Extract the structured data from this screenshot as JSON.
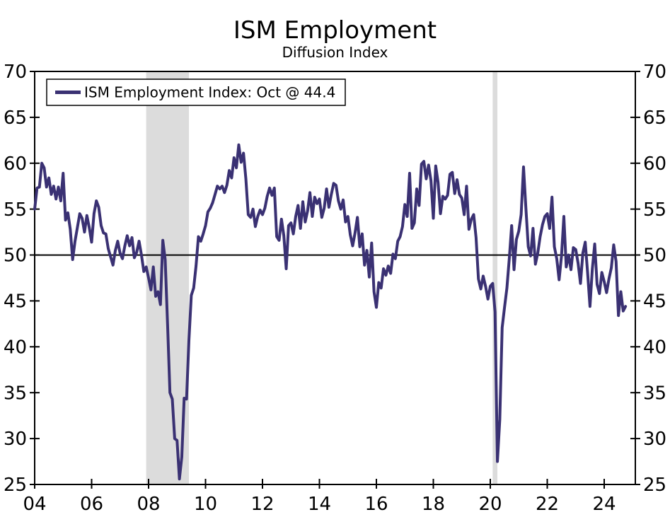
{
  "chart_data": {
    "type": "line",
    "title": "ISM Employment",
    "subtitle": "Diffusion Index",
    "ylim": [
      25,
      70
    ],
    "y_ticks": [
      25,
      30,
      35,
      40,
      45,
      50,
      55,
      60,
      65,
      70
    ],
    "x_tick_years": [
      2004,
      2006,
      2008,
      2010,
      2012,
      2014,
      2016,
      2018,
      2020,
      2022,
      2024
    ],
    "x_tick_labels": [
      "04",
      "06",
      "08",
      "10",
      "12",
      "14",
      "16",
      "18",
      "20",
      "22",
      "24"
    ],
    "reference_line_value": 50,
    "grid": false,
    "legend_position": "top-left",
    "band_color": "#dcdcdc",
    "axis_color": "#000000",
    "background_color": "#ffffff",
    "recession_bands": [
      {
        "start": "2007-12",
        "end": "2009-06"
      },
      {
        "start": "2020-02",
        "end": "2020-04"
      }
    ],
    "series": [
      {
        "name": "ISM Employment Index",
        "legend_label": "ISM Employment Index: Oct @ 44.4",
        "latest_point": {
          "month": "Oct",
          "value": 44.4
        },
        "color": "#3a3173",
        "start_month": "2004-01",
        "end_month": "2024-10",
        "values": [
          55.0,
          57.3,
          57.4,
          60.0,
          59.5,
          57.4,
          58.4,
          56.6,
          57.5,
          56.1,
          57.4,
          55.9,
          58.9,
          53.8,
          54.6,
          52.8,
          49.5,
          51.5,
          53.0,
          54.5,
          54.0,
          52.5,
          54.3,
          53.0,
          51.4,
          54.5,
          55.9,
          55.2,
          53.2,
          52.4,
          52.3,
          50.7,
          49.8,
          48.9,
          50.5,
          51.5,
          50.2,
          49.6,
          51.0,
          52.1,
          51.0,
          51.9,
          49.7,
          50.3,
          51.5,
          50.0,
          48.2,
          48.7,
          47.5,
          46.2,
          48.7,
          45.5,
          46.0,
          44.6,
          51.6,
          49.5,
          42.5,
          35.0,
          34.3,
          30.0,
          29.8,
          25.6,
          28.0,
          34.4,
          34.3,
          40.7,
          45.6,
          46.4,
          48.8,
          52.0,
          51.5,
          52.3,
          53.2,
          54.7,
          55.1,
          55.7,
          56.6,
          57.5,
          57.2,
          57.5,
          56.8,
          57.6,
          59.2,
          58.4,
          60.6,
          59.5,
          62.0,
          60.1,
          61.1,
          58.3,
          54.4,
          54.1,
          55.0,
          53.1,
          54.2,
          54.9,
          54.4,
          55.1,
          56.4,
          57.3,
          56.5,
          57.3,
          52.0,
          51.6,
          53.9,
          52.1,
          48.5,
          53.2,
          53.5,
          52.3,
          54.2,
          55.4,
          52.9,
          55.8,
          53.6,
          54.8,
          56.8,
          54.2,
          56.3,
          55.6,
          56.1,
          54.1,
          55.1,
          57.2,
          55.2,
          56.6,
          57.8,
          57.6,
          55.9,
          55.0,
          56.0,
          53.6,
          54.2,
          52.2,
          51.0,
          52.4,
          54.1,
          50.9,
          52.3,
          48.9,
          50.5,
          47.6,
          51.3,
          46.0,
          44.3,
          47.0,
          46.4,
          48.5,
          47.8,
          48.8,
          48.0,
          50.1,
          49.6,
          51.5,
          52.0,
          53.1,
          55.5,
          54.2,
          58.9,
          52.9,
          53.5,
          57.2,
          55.4,
          59.9,
          60.2,
          58.3,
          59.8,
          58.1,
          54.0,
          59.7,
          57.9,
          54.5,
          56.4,
          56.1,
          56.5,
          58.8,
          59.0,
          56.7,
          58.2,
          56.6,
          56.2,
          54.4,
          57.5,
          52.8,
          53.9,
          54.4,
          51.9,
          47.4,
          46.3,
          47.7,
          46.6,
          45.2,
          46.6,
          46.9,
          43.8,
          27.5,
          32.1,
          42.1,
          44.3,
          46.4,
          49.6,
          53.2,
          48.4,
          51.7,
          52.6,
          54.4,
          59.6,
          55.1,
          50.9,
          49.9,
          52.9,
          49.0,
          50.2,
          52.0,
          53.3,
          54.2,
          54.5,
          52.9,
          56.3,
          50.9,
          49.6,
          47.3,
          49.9,
          54.2,
          48.7,
          50.0,
          48.4,
          50.8,
          50.6,
          49.1,
          46.9,
          50.2,
          51.4,
          48.1,
          44.4,
          48.5,
          51.2,
          46.8,
          45.8,
          48.1,
          47.1,
          45.9,
          47.4,
          48.6,
          51.1,
          49.3,
          43.4,
          46.0,
          43.9,
          44.4
        ]
      }
    ]
  }
}
